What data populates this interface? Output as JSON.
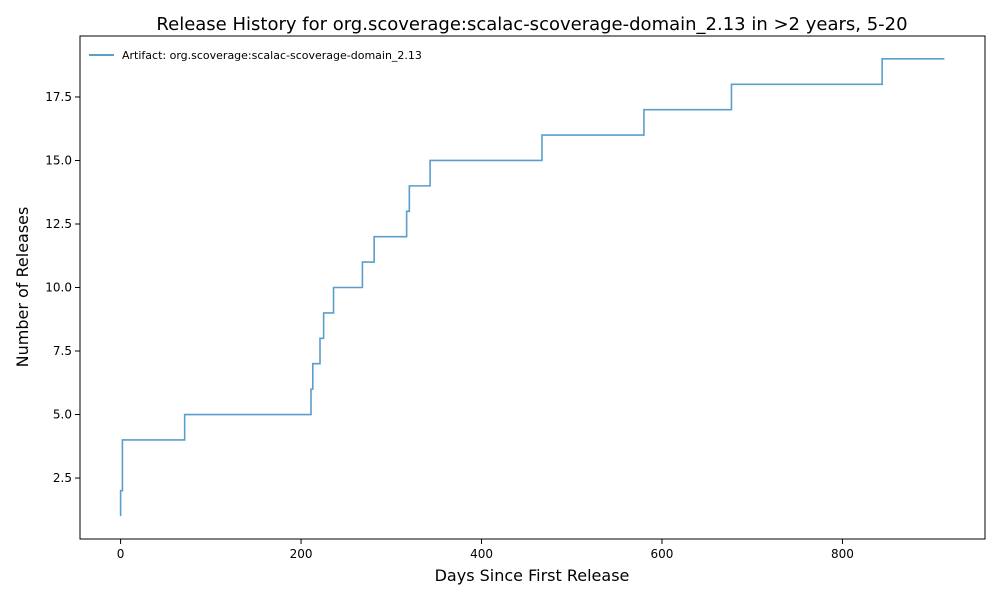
{
  "chart_data": {
    "type": "line",
    "step": "post",
    "title": "Release History for org.scoverage:scalac-scoverage-domain_2.13 in >2 years, 5-20",
    "xlabel": "Days Since First Release",
    "ylabel": "Number of Releases",
    "xlim": [
      -45,
      958
    ],
    "ylim": [
      0.1,
      19.9
    ],
    "xticks": [
      0,
      200,
      400,
      600,
      800
    ],
    "xtick_labels": [
      "0",
      "200",
      "400",
      "600",
      "800"
    ],
    "yticks": [
      2.5,
      5.0,
      7.5,
      10.0,
      12.5,
      15.0,
      17.5
    ],
    "ytick_labels": [
      "2.5",
      "5.0",
      "7.5",
      "10.0",
      "12.5",
      "15.0",
      "17.5"
    ],
    "grid": false,
    "legend_position": "upper-left",
    "legend_frame": false,
    "color": "#5b9ecb",
    "series": [
      {
        "name": "Artifact: org.scoverage:scalac-scoverage-domain_2.13",
        "x": [
          0,
          0,
          2,
          71,
          210,
          211,
          213,
          221,
          223,
          225,
          236,
          268,
          281,
          317,
          320,
          343,
          467,
          580,
          677,
          844,
          913
        ],
        "y": [
          1,
          2,
          4,
          5,
          5,
          6,
          7,
          8,
          8,
          9,
          10,
          11,
          12,
          13,
          14,
          15,
          16,
          17,
          18,
          19,
          19
        ]
      }
    ]
  }
}
